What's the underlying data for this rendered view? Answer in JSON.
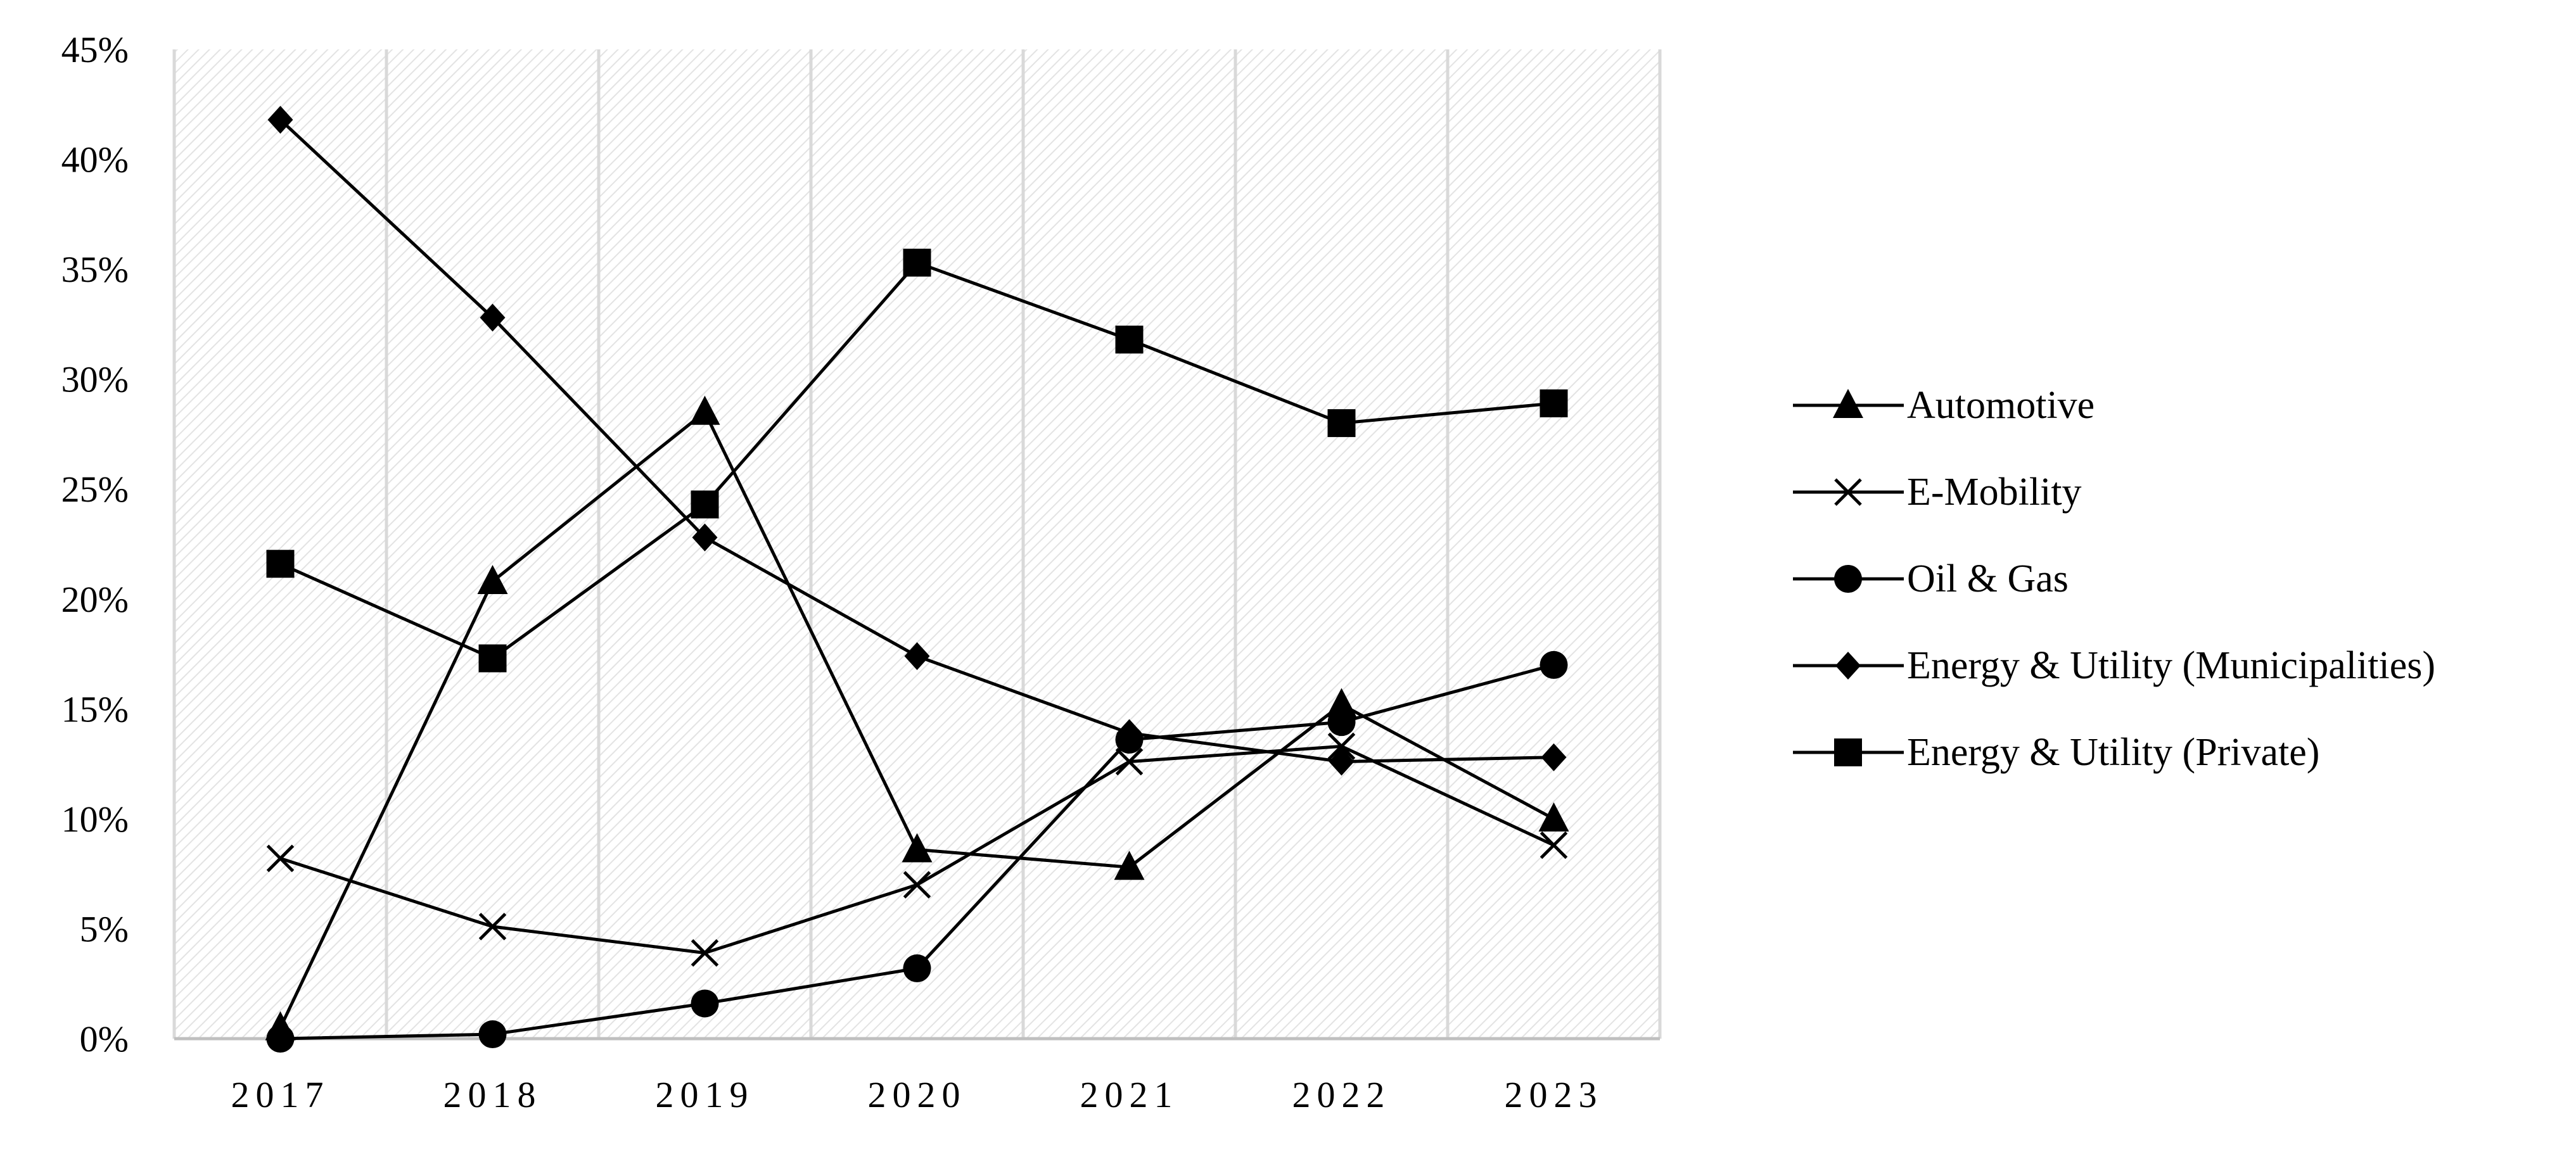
{
  "chart_data": {
    "type": "line",
    "title": "",
    "xlabel": "",
    "ylabel": "",
    "categories": [
      "2017",
      "2018",
      "2019",
      "2020",
      "2021",
      "2022",
      "2023"
    ],
    "ylim": [
      0,
      45
    ],
    "y_ticks": [
      0,
      5,
      10,
      15,
      20,
      25,
      30,
      35,
      40,
      45
    ],
    "y_tick_labels": [
      "0%",
      "5%",
      "10%",
      "15%",
      "20%",
      "25%",
      "30%",
      "35%",
      "40%",
      "45%"
    ],
    "y_unit": "%",
    "grid": "vertical",
    "plot_background": "hatched",
    "legend_position": "right",
    "series": [
      {
        "name": "Automotive",
        "marker": "triangle",
        "values": [
          0.5,
          20.8,
          28.5,
          8.6,
          7.8,
          15.2,
          10.0
        ]
      },
      {
        "name": "E-Mobility",
        "marker": "x",
        "values": [
          8.2,
          5.1,
          3.9,
          7.0,
          12.6,
          13.3,
          8.8
        ]
      },
      {
        "name": "Oil & Gas",
        "marker": "circle",
        "values": [
          0.0,
          0.2,
          1.6,
          3.2,
          13.6,
          14.4,
          17.0
        ]
      },
      {
        "name": "Energy & Utility (Municipalities)",
        "marker": "diamond",
        "values": [
          41.8,
          32.8,
          22.8,
          17.4,
          13.9,
          12.6,
          12.8
        ]
      },
      {
        "name": "Energy & Utility (Private)",
        "marker": "square",
        "values": [
          21.6,
          17.3,
          24.3,
          35.3,
          31.8,
          28.0,
          28.9
        ]
      }
    ]
  },
  "colors": {
    "line": "#000000",
    "gridline": "#d9d9d9",
    "hatch": "#e3e3e3",
    "axis": "#bfbfbf"
  }
}
